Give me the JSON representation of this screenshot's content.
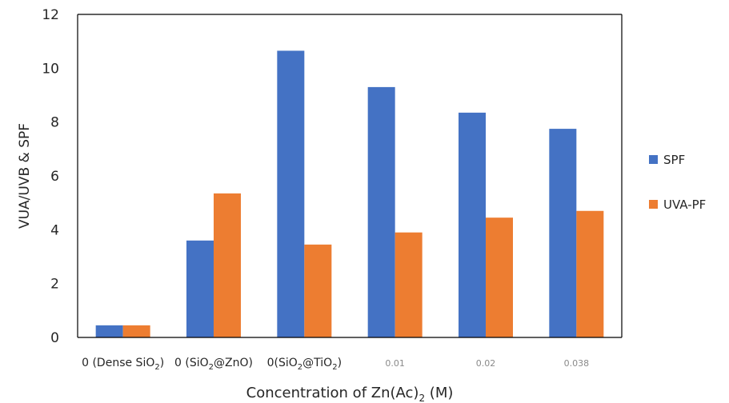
{
  "chart_data": {
    "type": "bar",
    "xlabel": "Concentration of Zn(Ac)2 (M)",
    "ylabel": "VUA/UVB & SPF",
    "ylim": [
      0,
      12
    ],
    "yticks": [
      0,
      2,
      4,
      6,
      8,
      10,
      12
    ],
    "grid": false,
    "legend_position": "right",
    "categories": [
      {
        "base": "0 (Dense SiO",
        "sub": "2",
        "tail": ")"
      },
      {
        "base": "0 (SiO",
        "sub": "2",
        "tail": "@ZnO)"
      },
      {
        "base": "0(SiO",
        "sub": "2",
        "tail": "@TiO",
        "sub2": "2",
        "tail2": ")"
      },
      {
        "base": "0.01"
      },
      {
        "base": "0.02"
      },
      {
        "base": "0.038"
      }
    ],
    "category_labels": [
      "0 (Dense SiO2)",
      "0 (SiO2@ZnO)",
      "0(SiO2@TiO2)",
      "0.01",
      "0.02",
      "0.038"
    ],
    "series": [
      {
        "name": "SPF",
        "color": "#4472C4",
        "values": [
          0.45,
          3.6,
          10.65,
          9.3,
          8.35,
          7.75
        ]
      },
      {
        "name": "UVA-PF",
        "color": "#ED7D31",
        "values": [
          0.45,
          5.35,
          3.45,
          3.9,
          4.45,
          4.7
        ]
      }
    ]
  }
}
